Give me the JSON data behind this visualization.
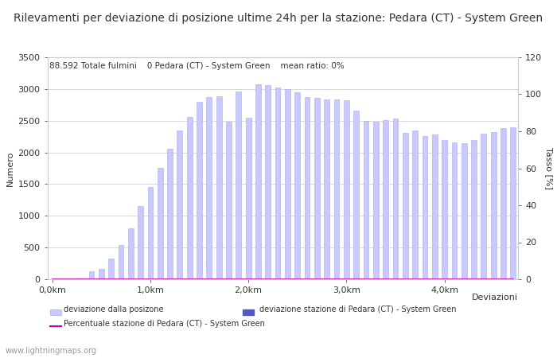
{
  "title": "Rilevamenti per deviazione di posizione ultime 24h per la stazione: Pedara (CT) - System Green",
  "annotation": "88.592 Totale fulmini    0 Pedara (CT) - System Green    mean ratio: 0%",
  "xlabel": "Deviazioni",
  "ylabel_left": "Numero",
  "ylabel_right": "Tasso [%]",
  "ylim_left": [
    0,
    3500
  ],
  "ylim_right": [
    0,
    120
  ],
  "yticks_left": [
    0,
    500,
    1000,
    1500,
    2000,
    2500,
    3000,
    3500
  ],
  "yticks_right": [
    0,
    20,
    40,
    60,
    80,
    100,
    120
  ],
  "xtick_labels": [
    "0,0km",
    "1,0km",
    "2,0km",
    "3,0km",
    "4,0km"
  ],
  "xtick_positions": [
    0,
    10,
    20,
    30,
    40
  ],
  "bar_values": [
    5,
    5,
    5,
    15,
    120,
    160,
    320,
    540,
    800,
    1150,
    1450,
    1750,
    2060,
    2350,
    2560,
    2800,
    2870,
    2890,
    2490,
    2960,
    2550,
    3070,
    3060,
    3020,
    3000,
    2950,
    2870,
    2860,
    2840,
    2840,
    2820,
    2660,
    2500,
    2480,
    2510,
    2530,
    2310,
    2340,
    2260,
    2280,
    2200,
    2160,
    2150,
    2200,
    2300,
    2320,
    2380,
    2400
  ],
  "bar_color": "#c8caff",
  "bar_edge_color": "#aaaadd",
  "station_bar_values": [
    0,
    0,
    0,
    0,
    0,
    0,
    0,
    0,
    0,
    0,
    0,
    0,
    0,
    0,
    0,
    0,
    0,
    0,
    0,
    0,
    0,
    0,
    0,
    0,
    0,
    0,
    0,
    0,
    0,
    0,
    0,
    0,
    0,
    0,
    0,
    0,
    0,
    0,
    0,
    0,
    0,
    0,
    0,
    0,
    0,
    0,
    0,
    0
  ],
  "station_bar_color": "#5555cc",
  "line_values": [
    0,
    0,
    0,
    0,
    0,
    0,
    0,
    0,
    0,
    0,
    0,
    0,
    0,
    0,
    0,
    0,
    0,
    0,
    0,
    0,
    0,
    0,
    0,
    0,
    0,
    0,
    0,
    0,
    0,
    0,
    0,
    0,
    0,
    0,
    0,
    0,
    0,
    0,
    0,
    0,
    0,
    0,
    0,
    0,
    0,
    0,
    0,
    0
  ],
  "line_color": "#cc00aa",
  "legend_label_light": "deviazione dalla posizone",
  "legend_label_dark": "deviazione stazione di Pedara (CT) - System Green",
  "legend_label_line": "Percentuale stazione di Pedara (CT) - System Green",
  "bg_color": "#ffffff",
  "grid_color": "#cccccc",
  "font_color": "#333333",
  "watermark": "www.lightningmaps.org",
  "title_fontsize": 10,
  "axis_fontsize": 8,
  "annotation_fontsize": 7.5
}
